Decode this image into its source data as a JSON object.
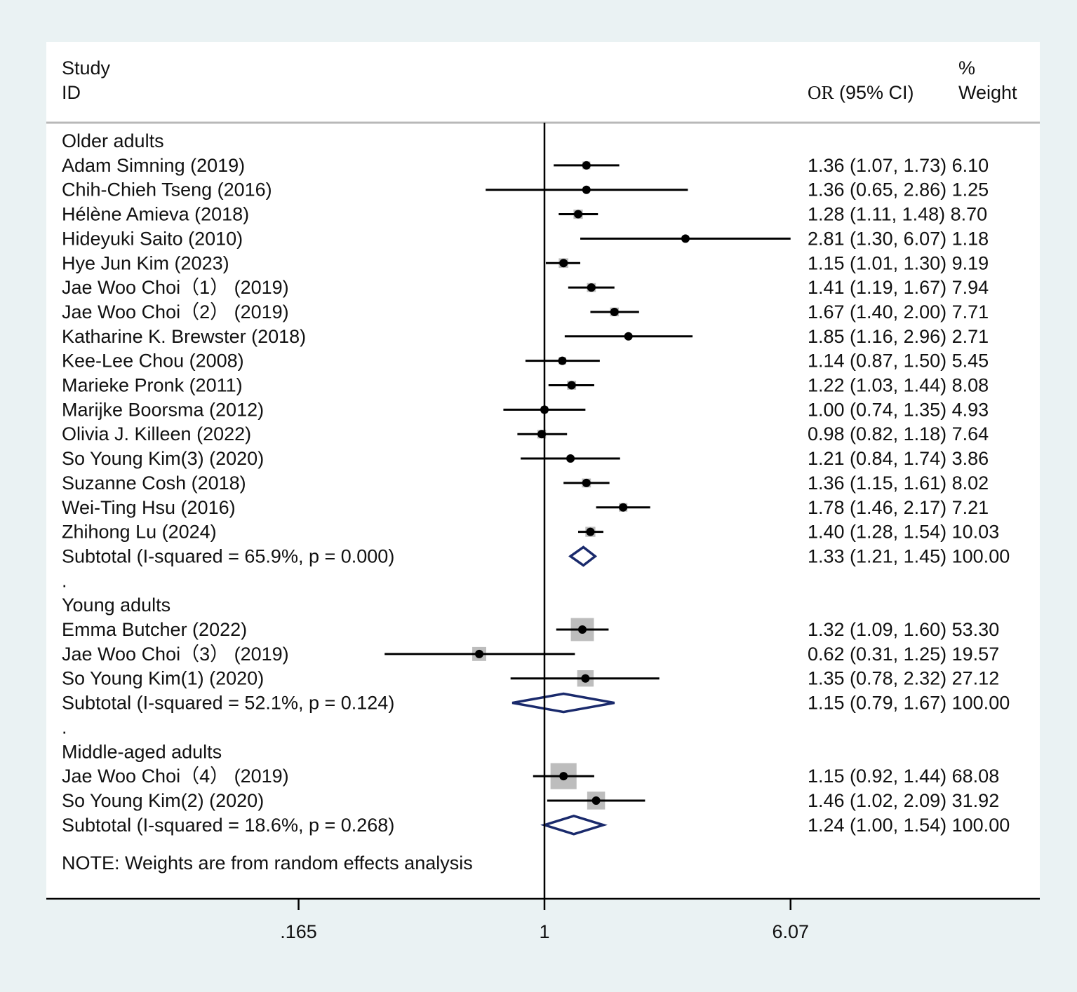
{
  "chart_data": {
    "type": "forest",
    "scale": "log",
    "header": {
      "study_line1": "Study",
      "study_line2": "ID",
      "or_prefix": "OR",
      "or_suffix": " (95% CI)",
      "weight_line1": "%",
      "weight_line2": "Weight"
    },
    "x_ticks": [
      {
        "value": 0.165,
        "label": ".165"
      },
      {
        "value": 1,
        "label": "1"
      },
      {
        "value": 6.07,
        "label": "6.07"
      }
    ],
    "null_value": 1,
    "rows": [
      {
        "kind": "group",
        "label": "Older adults"
      },
      {
        "kind": "study",
        "label": "Adam Simning (2019)",
        "or": 1.36,
        "lo": 1.07,
        "hi": 1.73,
        "weight": 6.1,
        "text": "1.36 (1.07, 1.73) 6.10"
      },
      {
        "kind": "study",
        "label": "Chih-Chieh Tseng (2016)",
        "or": 1.36,
        "lo": 0.65,
        "hi": 2.86,
        "weight": 1.25,
        "text": "1.36 (0.65, 2.86) 1.25"
      },
      {
        "kind": "study",
        "label": "Hélène Amieva (2018)",
        "or": 1.28,
        "lo": 1.11,
        "hi": 1.48,
        "weight": 8.7,
        "text": "1.28 (1.11, 1.48) 8.70"
      },
      {
        "kind": "study",
        "label": "Hideyuki Saito (2010)",
        "or": 2.81,
        "lo": 1.3,
        "hi": 6.07,
        "weight": 1.18,
        "text": "2.81 (1.30, 6.07) 1.18"
      },
      {
        "kind": "study",
        "label": "Hye Jun Kim (2023)",
        "or": 1.15,
        "lo": 1.01,
        "hi": 1.3,
        "weight": 9.19,
        "text": "1.15 (1.01, 1.30) 9.19"
      },
      {
        "kind": "study",
        "label": "Jae Woo Choi（1） (2019)",
        "or": 1.41,
        "lo": 1.19,
        "hi": 1.67,
        "weight": 7.94,
        "text": "1.41 (1.19, 1.67) 7.94"
      },
      {
        "kind": "study",
        "label": "Jae Woo Choi（2） (2019)",
        "or": 1.67,
        "lo": 1.4,
        "hi": 2.0,
        "weight": 7.71,
        "text": "1.67 (1.40, 2.00) 7.71"
      },
      {
        "kind": "study",
        "label": "Katharine K. Brewster (2018)",
        "or": 1.85,
        "lo": 1.16,
        "hi": 2.96,
        "weight": 2.71,
        "text": "1.85 (1.16, 2.96) 2.71"
      },
      {
        "kind": "study",
        "label": "Kee-Lee Chou (2008)",
        "or": 1.14,
        "lo": 0.87,
        "hi": 1.5,
        "weight": 5.45,
        "text": "1.14 (0.87, 1.50) 5.45"
      },
      {
        "kind": "study",
        "label": "Marieke Pronk (2011)",
        "or": 1.22,
        "lo": 1.03,
        "hi": 1.44,
        "weight": 8.08,
        "text": "1.22 (1.03, 1.44) 8.08"
      },
      {
        "kind": "study",
        "label": "Marijke Boorsma (2012)",
        "or": 1.0,
        "lo": 0.74,
        "hi": 1.35,
        "weight": 4.93,
        "text": "1.00 (0.74, 1.35) 4.93"
      },
      {
        "kind": "study",
        "label": "Olivia J. Killeen (2022)",
        "or": 0.98,
        "lo": 0.82,
        "hi": 1.18,
        "weight": 7.64,
        "text": "0.98 (0.82, 1.18) 7.64"
      },
      {
        "kind": "study",
        "label": "So Young Kim(3) (2020)",
        "or": 1.21,
        "lo": 0.84,
        "hi": 1.74,
        "weight": 3.86,
        "text": "1.21 (0.84, 1.74) 3.86"
      },
      {
        "kind": "study",
        "label": "Suzanne Cosh (2018)",
        "or": 1.36,
        "lo": 1.15,
        "hi": 1.61,
        "weight": 8.02,
        "text": "1.36 (1.15, 1.61) 8.02"
      },
      {
        "kind": "study",
        "label": "Wei-Ting Hsu (2016)",
        "or": 1.78,
        "lo": 1.46,
        "hi": 2.17,
        "weight": 7.21,
        "text": "1.78 (1.46, 2.17) 7.21"
      },
      {
        "kind": "study",
        "label": "Zhihong Lu (2024)",
        "or": 1.4,
        "lo": 1.28,
        "hi": 1.54,
        "weight": 10.03,
        "text": "1.40 (1.28, 1.54) 10.03"
      },
      {
        "kind": "subtotal",
        "label": "Subtotal  (I-squared = 65.9%, p = 0.000)",
        "or": 1.33,
        "lo": 1.21,
        "hi": 1.45,
        "weight": 100.0,
        "text": "1.33 (1.21, 1.45) 100.00"
      },
      {
        "kind": "sep",
        "label": "."
      },
      {
        "kind": "group",
        "label": "Young adults"
      },
      {
        "kind": "study",
        "label": "Emma Butcher (2022)",
        "or": 1.32,
        "lo": 1.09,
        "hi": 1.6,
        "weight": 53.3,
        "text": "1.32 (1.09, 1.60) 53.30"
      },
      {
        "kind": "study",
        "label": "Jae Woo Choi（3） (2019)",
        "or": 0.62,
        "lo": 0.31,
        "hi": 1.25,
        "weight": 19.57,
        "text": "0.62 (0.31, 1.25) 19.57"
      },
      {
        "kind": "study",
        "label": "So Young Kim(1) (2020)",
        "or": 1.35,
        "lo": 0.78,
        "hi": 2.32,
        "weight": 27.12,
        "text": "1.35 (0.78, 2.32) 27.12"
      },
      {
        "kind": "subtotal",
        "label": "Subtotal  (I-squared = 52.1%, p = 0.124)",
        "or": 1.15,
        "lo": 0.79,
        "hi": 1.67,
        "weight": 100.0,
        "text": "1.15 (0.79, 1.67) 100.00"
      },
      {
        "kind": "sep",
        "label": "."
      },
      {
        "kind": "group",
        "label": "Middle-aged adults"
      },
      {
        "kind": "study",
        "label": "Jae Woo Choi（4） (2019)",
        "or": 1.15,
        "lo": 0.92,
        "hi": 1.44,
        "weight": 68.08,
        "text": "1.15 (0.92, 1.44) 68.08"
      },
      {
        "kind": "study",
        "label": "So Young Kim(2) (2020)",
        "or": 1.46,
        "lo": 1.02,
        "hi": 2.09,
        "weight": 31.92,
        "text": "1.46 (1.02, 2.09) 31.92"
      },
      {
        "kind": "subtotal",
        "label": "Subtotal  (I-squared = 18.6%, p = 0.268)",
        "or": 1.24,
        "lo": 1.0,
        "hi": 1.54,
        "weight": 100.0,
        "text": "1.24 (1.00, 1.54) 100.00"
      }
    ],
    "note": "NOTE: Weights are from random effects analysis",
    "colors": {
      "frame_bg": "#eaf2f3",
      "plot_bg": "#ffffff",
      "box": "#bdbdbd",
      "line": "#000000",
      "diamond": "#1a2a6c",
      "header_rule": "#b8b8b8"
    }
  }
}
